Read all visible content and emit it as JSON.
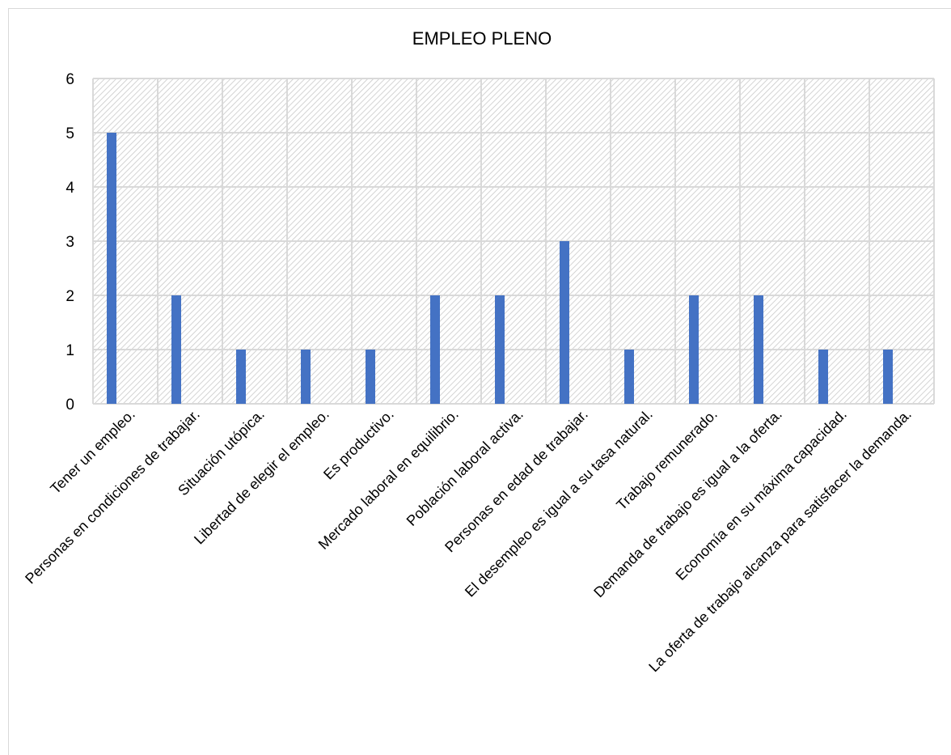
{
  "chart_data": {
    "type": "bar",
    "title": "EMPLEO PLENO",
    "xlabel": "",
    "ylabel": "",
    "ylim": [
      0,
      6
    ],
    "yticks": [
      "0",
      "1",
      "2",
      "3",
      "4",
      "5",
      "6"
    ],
    "grid": true,
    "legend": "none",
    "bar_color": "#4472c4",
    "categories": [
      "Tener un empleo.",
      "Personas en condiciones de trabajar.",
      "Situación utópica.",
      "Libertad de elegir el empleo.",
      "Es productivo.",
      "Mercado laboral en equilibrio.",
      "Población laboral activa.",
      "Personas en edad de trabajar.",
      "El desempleo es igual a su tasa natural.",
      "Trabajo remunerado.",
      "Demanda de trabajo es igual a la oferta.",
      "Economía en su máxima capacidad.",
      "La oferta de trabajo alcanza para satisfacer la demanda."
    ],
    "values": [
      5,
      2,
      1,
      1,
      1,
      2,
      2,
      3,
      1,
      2,
      2,
      1,
      1
    ]
  }
}
